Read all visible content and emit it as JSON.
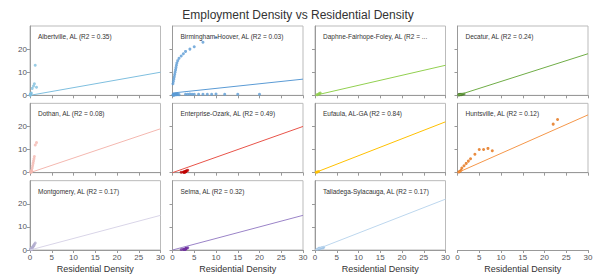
{
  "title": "Employment Density vs Residential Density",
  "chart_data": [
    {
      "type": "scatter",
      "title": "Albertville, AL (R2 = 0.35)",
      "xlim": [
        0,
        30
      ],
      "ylim": [
        0,
        30
      ],
      "xticks": [
        0,
        5,
        10,
        15,
        20,
        25,
        30
      ],
      "yticks": [
        0,
        10,
        20
      ],
      "grid": false,
      "tick_labels": "y",
      "series": [
        {
          "type": "scatter",
          "color": "#7fbfdf",
          "x": [
            0.05,
            0.1,
            0.15,
            0.2,
            0.3,
            0.5,
            0.8,
            1.0,
            1.2,
            1.5,
            0.1,
            0.05
          ],
          "values": [
            0.2,
            0.3,
            0.5,
            0.8,
            1.0,
            3.0,
            4.0,
            5.0,
            13.0,
            3.5,
            0.1,
            0.2
          ]
        },
        {
          "type": "line",
          "color": "#7fbfdf",
          "x": [
            0,
            30
          ],
          "values": [
            0.0,
            10.0
          ]
        }
      ]
    },
    {
      "type": "scatter",
      "title": "Birmingham-Hoover, AL (R2 = 0.03)",
      "xlim": [
        0,
        30
      ],
      "ylim": [
        0,
        30
      ],
      "xticks": [
        0,
        5,
        10,
        15,
        20,
        25,
        30
      ],
      "yticks": [
        0,
        10,
        20
      ],
      "grid": false,
      "tick_labels": false,
      "series": [
        {
          "type": "scatter",
          "color": "#5b9bd5",
          "x": [
            0.1,
            0.2,
            0.3,
            0.4,
            0.5,
            0.6,
            0.7,
            0.8,
            0.9,
            1.0,
            1.2,
            1.5,
            2.0,
            2.5,
            3.0,
            4.0,
            5.0,
            7.0,
            10.0,
            0.1,
            0.2,
            0.3,
            0.4,
            0.5,
            0.6,
            0.7,
            0.8,
            0.9,
            1.0,
            1.2,
            1.5,
            0.2,
            0.3,
            0.4,
            0.5,
            0.6,
            0.7,
            3.0,
            3.5,
            4.0,
            4.5,
            5.0,
            6.0,
            7.0,
            8.0,
            9.0,
            10.0,
            12.0,
            15.0,
            20.0
          ],
          "values": [
            5.0,
            6.0,
            7.0,
            8.0,
            9.0,
            10.0,
            11.0,
            12.0,
            13.0,
            14.0,
            15.0,
            16.0,
            17.0,
            18.0,
            19.0,
            20.0,
            21.0,
            23.0,
            25.0,
            0.2,
            0.3,
            0.3,
            0.4,
            0.4,
            0.5,
            0.5,
            0.4,
            0.5,
            0.3,
            0.4,
            0.3,
            0.2,
            0.3,
            0.2,
            0.3,
            0.4,
            0.3,
            0.5,
            0.5,
            0.6,
            0.5,
            0.5,
            0.5,
            0.5,
            0.5,
            0.5,
            0.6,
            0.5,
            0.5,
            0.5
          ]
        },
        {
          "type": "line",
          "color": "#5b9bd5",
          "x": [
            0,
            30
          ],
          "values": [
            1.0,
            7.0
          ]
        }
      ]
    },
    {
      "type": "scatter",
      "title": "Daphne-Fairhope-Foley, AL (R2 = ...",
      "xlim": [
        0,
        30
      ],
      "ylim": [
        0,
        30
      ],
      "xticks": [
        0,
        5,
        10,
        15,
        20,
        25,
        30
      ],
      "yticks": [
        0,
        10,
        20
      ],
      "grid": false,
      "tick_labels": false,
      "series": [
        {
          "type": "scatter",
          "color": "#92d050",
          "x": [
            0.5,
            0.8,
            1.0,
            1.2
          ],
          "values": [
            0.3,
            0.5,
            0.8,
            1.0
          ]
        },
        {
          "type": "line",
          "color": "#92d050",
          "x": [
            0,
            30
          ],
          "values": [
            0.0,
            13.0
          ]
        }
      ]
    },
    {
      "type": "scatter",
      "title": "Decatur, AL (R2 = 0.24)",
      "xlim": [
        0,
        30
      ],
      "ylim": [
        0,
        30
      ],
      "xticks": [
        0,
        5,
        10,
        15,
        20,
        25,
        30
      ],
      "yticks": [
        0,
        10,
        20
      ],
      "grid": false,
      "tick_labels": false,
      "series": [
        {
          "type": "scatter",
          "color": "#548235",
          "x": [
            0.3,
            0.4,
            0.5,
            0.6,
            0.7,
            0.8,
            0.9,
            1.0,
            1.2,
            1.5
          ],
          "values": [
            0.2,
            0.3,
            0.4,
            0.5,
            0.4,
            0.3,
            0.4,
            0.5,
            0.5,
            0.6
          ]
        },
        {
          "type": "line",
          "color": "#70ad47",
          "x": [
            0,
            30
          ],
          "values": [
            0.0,
            18.0
          ]
        }
      ]
    },
    {
      "type": "scatter",
      "title": "Dothan, AL (R2 = 0.08)",
      "xlim": [
        0,
        30
      ],
      "ylim": [
        0,
        30
      ],
      "xticks": [
        0,
        5,
        10,
        15,
        20,
        25,
        30
      ],
      "yticks": [
        0,
        10,
        20
      ],
      "grid": false,
      "tick_labels": "y",
      "series": [
        {
          "type": "scatter",
          "color": "#f4b8b0",
          "x": [
            0.1,
            0.2,
            0.3,
            0.4,
            0.5,
            0.6,
            0.7,
            0.8,
            0.9,
            1.0,
            1.2,
            1.5,
            0.2,
            0.3,
            0.2
          ],
          "values": [
            0.3,
            0.5,
            0.8,
            1.0,
            2.0,
            3.0,
            4.0,
            5.0,
            6.0,
            7.0,
            12.0,
            13.0,
            0.3,
            0.4,
            0.2
          ]
        },
        {
          "type": "line",
          "color": "#f4b8b0",
          "x": [
            0,
            30
          ],
          "values": [
            0.0,
            19.0
          ]
        }
      ]
    },
    {
      "type": "scatter",
      "title": "Enterprise-Ozark, AL (R2 = 0.49)",
      "xlim": [
        0,
        30
      ],
      "ylim": [
        0,
        30
      ],
      "xticks": [
        0,
        5,
        10,
        15,
        20,
        25,
        30
      ],
      "yticks": [
        0,
        10,
        20
      ],
      "grid": false,
      "tick_labels": false,
      "series": [
        {
          "type": "scatter",
          "color": "#c00000",
          "x": [
            2.0,
            2.5,
            3.0,
            3.2,
            3.5,
            2.8,
            3.0,
            3.1,
            2.9,
            2.6,
            2.7
          ],
          "values": [
            0.2,
            0.3,
            0.5,
            0.8,
            1.0,
            0.3,
            0.4,
            0.6,
            0.3,
            0.2,
            0.3
          ]
        },
        {
          "type": "line",
          "color": "#e8544a",
          "x": [
            0,
            30
          ],
          "values": [
            0.0,
            20.0
          ]
        }
      ]
    },
    {
      "type": "scatter",
      "title": "Eufaula, AL-GA (R2 = 0.84)",
      "xlim": [
        0,
        30
      ],
      "ylim": [
        0,
        30
      ],
      "xticks": [
        0,
        5,
        10,
        15,
        20,
        25,
        30
      ],
      "yticks": [
        0,
        10,
        20
      ],
      "grid": false,
      "tick_labels": false,
      "series": [
        {
          "type": "scatter",
          "color": "#ffc000",
          "x": [
            0.3,
            0.5,
            0.8
          ],
          "values": [
            0.2,
            0.3,
            0.5
          ]
        },
        {
          "type": "line",
          "color": "#ffc000",
          "x": [
            0,
            30
          ],
          "values": [
            0.0,
            22.0
          ]
        }
      ]
    },
    {
      "type": "scatter",
      "title": "Huntsville, AL (R2 = 0.12)",
      "xlim": [
        0,
        30
      ],
      "ylim": [
        0,
        30
      ],
      "xticks": [
        0,
        5,
        10,
        15,
        20,
        25,
        30
      ],
      "yticks": [
        0,
        10,
        20
      ],
      "grid": false,
      "tick_labels": false,
      "series": [
        {
          "type": "scatter",
          "color": "#e36f10",
          "x": [
            0.3,
            0.5,
            0.8,
            1.0,
            1.5,
            2.0,
            2.5,
            3.0,
            4.0,
            5.0,
            6.0,
            7.0,
            8.0,
            22.0,
            23.0
          ],
          "values": [
            0.3,
            0.5,
            1.0,
            2.0,
            3.0,
            4.0,
            5.0,
            6.0,
            8.0,
            10.0,
            10.0,
            10.5,
            9.5,
            21.0,
            23.0
          ]
        },
        {
          "type": "line",
          "color": "#f5974a",
          "x": [
            0,
            30
          ],
          "values": [
            0.0,
            25.0
          ]
        }
      ]
    },
    {
      "type": "scatter",
      "title": "Montgomery, AL (R2 = 0.17)",
      "xlabel": "Residential Density",
      "xlim": [
        0,
        30
      ],
      "ylim": [
        0,
        30
      ],
      "xticks": [
        0,
        5,
        10,
        15,
        20,
        25,
        30
      ],
      "yticks": [
        0,
        10,
        20
      ],
      "grid": false,
      "series": [
        {
          "type": "scatter",
          "color": "#b3aed0",
          "x": [
            0.1,
            0.2,
            0.3,
            0.4,
            0.5,
            0.6,
            0.7,
            0.8,
            0.9,
            1.0,
            1.2,
            0.3,
            0.4,
            0.5
          ],
          "values": [
            0.2,
            0.4,
            0.6,
            0.8,
            1.0,
            1.2,
            1.5,
            1.8,
            2.0,
            2.5,
            3.0,
            0.2,
            0.3,
            0.4
          ]
        },
        {
          "type": "line",
          "color": "#d9d5e8",
          "x": [
            0,
            30
          ],
          "values": [
            0.0,
            15.0
          ]
        }
      ]
    },
    {
      "type": "scatter",
      "title": "Selma, AL (R2 = 0.32)",
      "xlabel": "Residential Density",
      "xlim": [
        0,
        30
      ],
      "ylim": [
        0,
        30
      ],
      "xticks": [
        0,
        5,
        10,
        15,
        20,
        25,
        30
      ],
      "yticks": [
        0,
        10,
        20
      ],
      "grid": false,
      "tick_labels": "x",
      "series": [
        {
          "type": "scatter",
          "color": "#7030a0",
          "x": [
            2.0,
            2.5,
            3.0,
            3.2,
            3.5,
            2.8,
            3.0,
            3.1,
            2.9,
            2.6
          ],
          "values": [
            0.2,
            0.3,
            0.5,
            0.8,
            1.0,
            0.3,
            0.4,
            0.6,
            0.3,
            0.2
          ]
        },
        {
          "type": "line",
          "color": "#9b84c8",
          "x": [
            0,
            30
          ],
          "values": [
            0.0,
            15.0
          ]
        }
      ]
    },
    {
      "type": "scatter",
      "title": "Talladega-Sylacauga, AL (R2 = 0.17)",
      "xlabel": "Residential Density",
      "xlim": [
        0,
        30
      ],
      "ylim": [
        0,
        30
      ],
      "xticks": [
        0,
        5,
        10,
        15,
        20,
        25,
        30
      ],
      "yticks": [
        0,
        10,
        20
      ],
      "grid": false,
      "tick_labels": "x",
      "series": [
        {
          "type": "scatter",
          "color": "#9dc3e6",
          "x": [
            0.5,
            0.8,
            1.0,
            1.5,
            2.0,
            1.2,
            1.8
          ],
          "values": [
            0.3,
            0.5,
            0.8,
            1.0,
            1.2,
            0.6,
            0.9
          ]
        },
        {
          "type": "line",
          "color": "#bdd7ee",
          "x": [
            0,
            30
          ],
          "values": [
            0.0,
            22.0
          ]
        }
      ]
    },
    {
      "type": "scatter",
      "xlabel": "Residential Density",
      "xlim": [
        0,
        30
      ],
      "xticks": [
        0,
        5,
        10,
        15,
        20,
        25,
        30
      ],
      "grid": false,
      "tick_labels": "x",
      "series": []
    }
  ]
}
